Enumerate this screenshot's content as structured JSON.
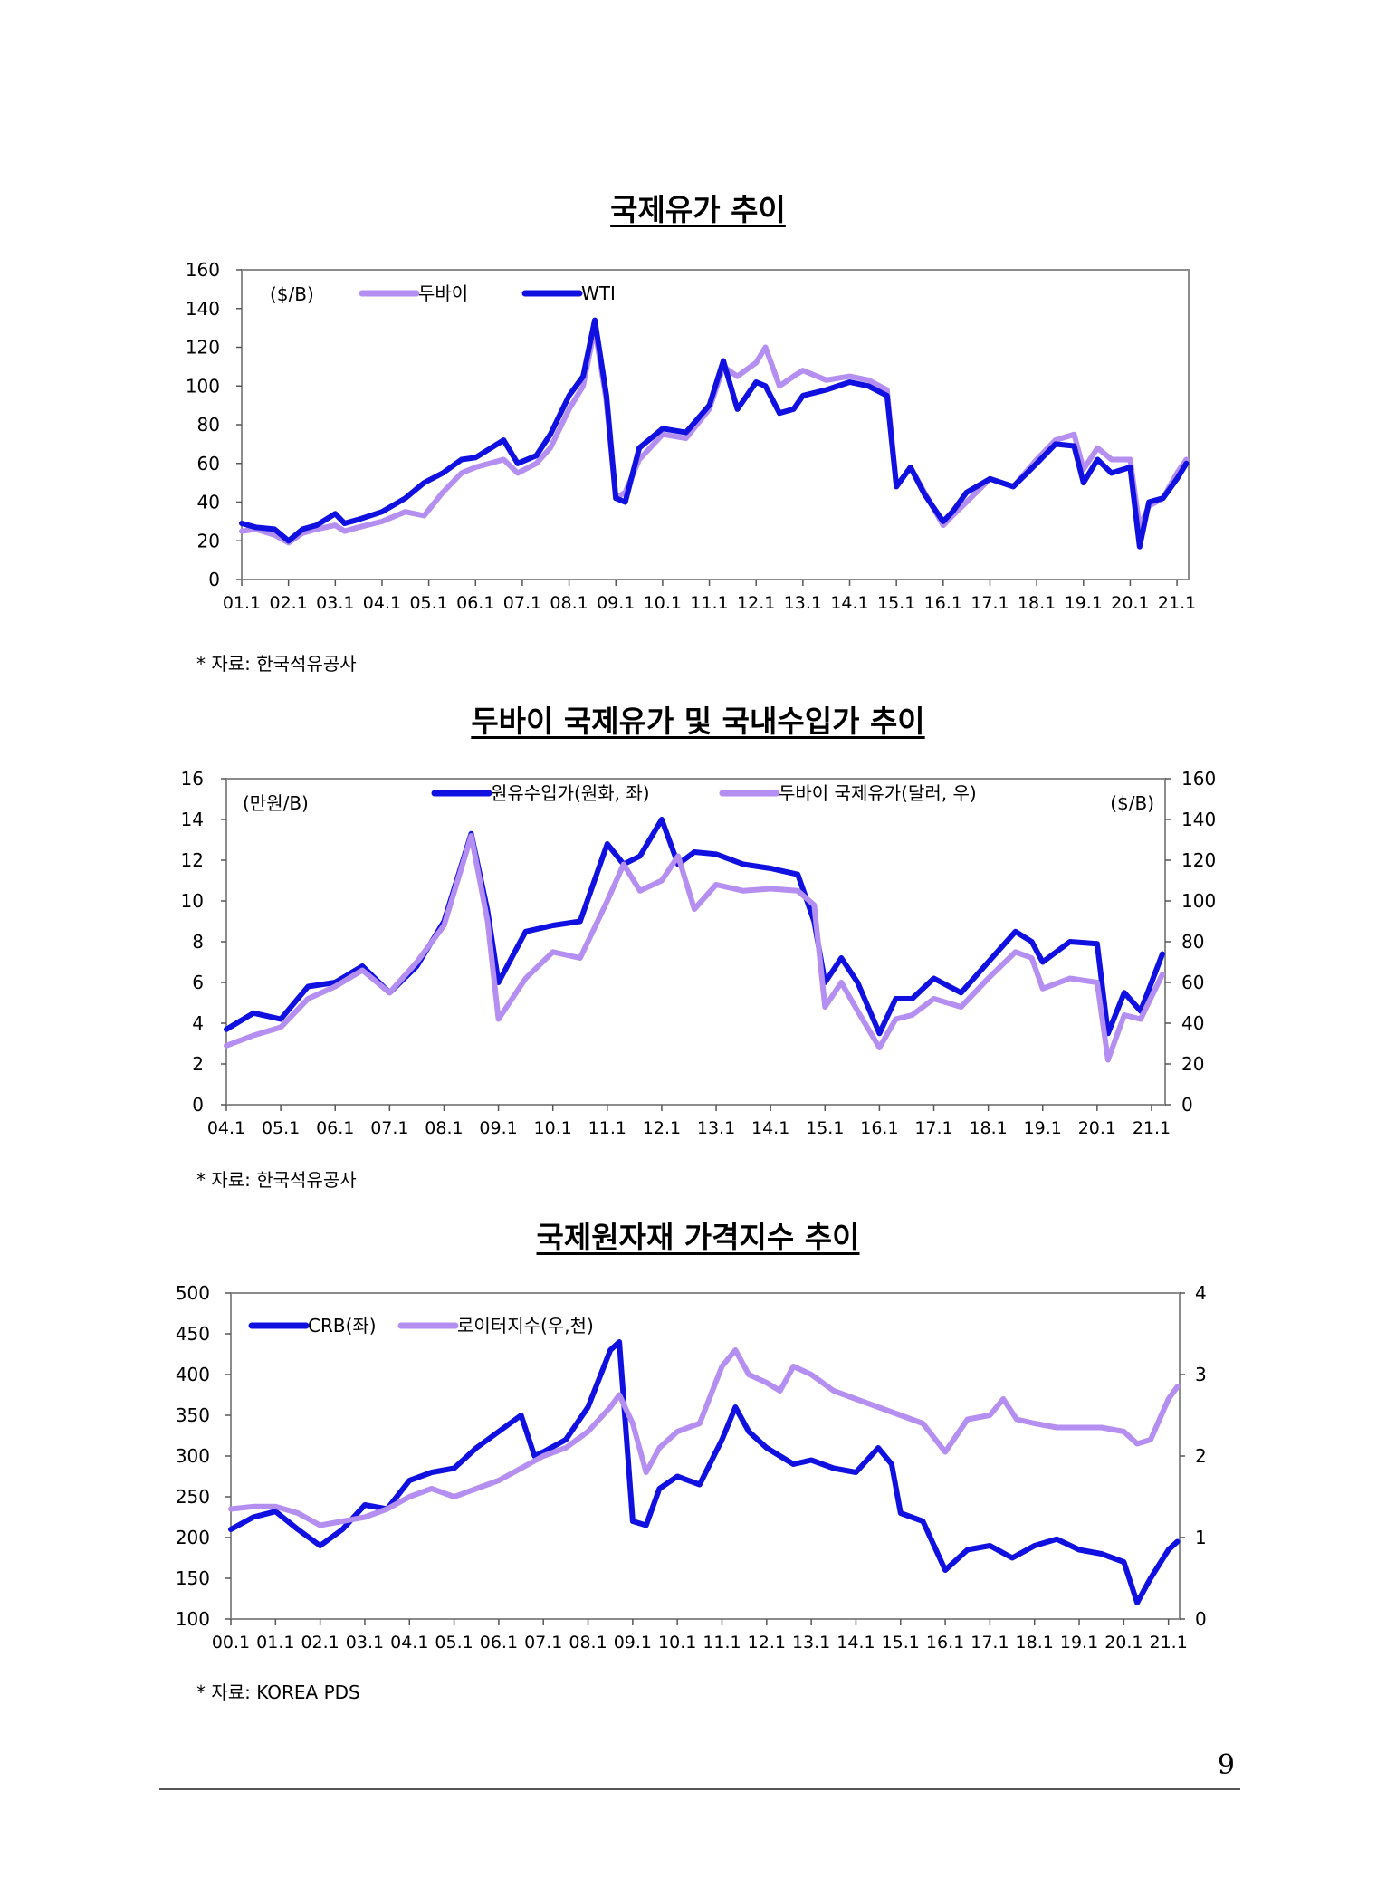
{
  "page_number": "9",
  "chart_data": [
    {
      "type": "line",
      "title": "국제유가 추이",
      "unit_label": "($/B)",
      "source": "* 자료: 한국석유공사",
      "x_ticks": [
        "01.1",
        "02.1",
        "03.1",
        "04.1",
        "05.1",
        "06.1",
        "07.1",
        "08.1",
        "09.1",
        "10.1",
        "11.1",
        "12.1",
        "13.1",
        "14.1",
        "15.1",
        "16.1",
        "17.1",
        "18.1",
        "19.1",
        "20.1",
        "21.1"
      ],
      "x_range": [
        2001.0,
        2021.25
      ],
      "ylim": [
        0,
        160
      ],
      "y_ticks": [
        0,
        20,
        40,
        60,
        80,
        100,
        120,
        140,
        160
      ],
      "legend_placement": "top-left",
      "series": [
        {
          "name": "두바이",
          "color": "#b48ef0",
          "x": [
            2001.0,
            2001.3,
            2001.7,
            2002.0,
            2002.3,
            2002.6,
            2003.0,
            2003.2,
            2003.5,
            2004.0,
            2004.5,
            2004.9,
            2005.3,
            2005.7,
            2006.0,
            2006.6,
            2006.9,
            2007.3,
            2007.6,
            2008.0,
            2008.3,
            2008.55,
            2008.8,
            2009.0,
            2009.2,
            2009.5,
            2010.0,
            2010.5,
            2011.0,
            2011.3,
            2011.6,
            2012.0,
            2012.2,
            2012.5,
            2012.8,
            2013.0,
            2013.5,
            2014.0,
            2014.4,
            2014.8,
            2015.0,
            2015.3,
            2015.6,
            2016.0,
            2016.2,
            2016.5,
            2017.0,
            2017.5,
            2018.0,
            2018.4,
            2018.8,
            2019.0,
            2019.3,
            2019.6,
            2020.0,
            2020.2,
            2020.4,
            2020.7,
            2021.0,
            2021.2
          ],
          "y": [
            25,
            26,
            23,
            19,
            24,
            26,
            28,
            25,
            27,
            30,
            35,
            33,
            45,
            55,
            58,
            62,
            55,
            60,
            68,
            88,
            100,
            130,
            92,
            42,
            45,
            62,
            75,
            73,
            88,
            110,
            105,
            112,
            120,
            100,
            105,
            108,
            103,
            105,
            103,
            98,
            48,
            58,
            45,
            28,
            33,
            40,
            52,
            48,
            62,
            72,
            75,
            57,
            68,
            62,
            62,
            27,
            38,
            42,
            55,
            62
          ]
        },
        {
          "name": "WTI",
          "color": "#1010e0",
          "x": [
            2001.0,
            2001.3,
            2001.7,
            2002.0,
            2002.3,
            2002.6,
            2003.0,
            2003.2,
            2003.5,
            2004.0,
            2004.5,
            2004.9,
            2005.3,
            2005.7,
            2006.0,
            2006.6,
            2006.9,
            2007.3,
            2007.6,
            2008.0,
            2008.3,
            2008.55,
            2008.8,
            2009.0,
            2009.2,
            2009.5,
            2010.0,
            2010.5,
            2011.0,
            2011.3,
            2011.6,
            2012.0,
            2012.2,
            2012.5,
            2012.8,
            2013.0,
            2013.5,
            2014.0,
            2014.4,
            2014.8,
            2015.0,
            2015.3,
            2015.6,
            2016.0,
            2016.2,
            2016.5,
            2017.0,
            2017.5,
            2018.0,
            2018.4,
            2018.8,
            2019.0,
            2019.3,
            2019.6,
            2020.0,
            2020.2,
            2020.4,
            2020.7,
            2021.0,
            2021.2
          ],
          "y": [
            29,
            27,
            26,
            20,
            26,
            28,
            34,
            29,
            31,
            35,
            42,
            50,
            55,
            62,
            63,
            72,
            60,
            64,
            75,
            95,
            105,
            134,
            95,
            42,
            40,
            68,
            78,
            76,
            90,
            113,
            88,
            102,
            100,
            86,
            88,
            95,
            98,
            102,
            100,
            95,
            48,
            58,
            44,
            30,
            35,
            45,
            52,
            48,
            60,
            70,
            69,
            50,
            62,
            55,
            58,
            17,
            40,
            42,
            52,
            60
          ]
        }
      ]
    },
    {
      "type": "line",
      "title": "두바이 국제유가 및 국내수입가 추이",
      "left_unit_label": "(만원/B)",
      "right_unit_label": "($/B)",
      "source": "* 자료: 한국석유공사",
      "x_ticks": [
        "04.1",
        "05.1",
        "06.1",
        "07.1",
        "08.1",
        "09.1",
        "10.1",
        "11.1",
        "12.1",
        "13.1",
        "14.1",
        "15.1",
        "16.1",
        "17.1",
        "18.1",
        "19.1",
        "20.1",
        "21.1"
      ],
      "x_range": [
        2004.0,
        2021.25
      ],
      "ylim_left": [
        0,
        16
      ],
      "ylim_right": [
        0,
        160
      ],
      "y_ticks_left": [
        0,
        2,
        4,
        6,
        8,
        10,
        12,
        14,
        16
      ],
      "y_ticks_right": [
        0,
        20,
        40,
        60,
        80,
        100,
        120,
        140,
        160
      ],
      "legend_placement": "top-center",
      "series": [
        {
          "name": "원유수입가(원화, 좌)",
          "color": "#1010e0",
          "axis": "left",
          "x": [
            2004.0,
            2004.5,
            2005.0,
            2005.5,
            2006.0,
            2006.5,
            2007.0,
            2007.5,
            2008.0,
            2008.5,
            2008.8,
            2009.0,
            2009.5,
            2010.0,
            2010.5,
            2011.0,
            2011.3,
            2011.6,
            2012.0,
            2012.3,
            2012.6,
            2013.0,
            2013.5,
            2014.0,
            2014.5,
            2014.8,
            2015.0,
            2015.3,
            2015.6,
            2016.0,
            2016.3,
            2016.6,
            2017.0,
            2017.5,
            2018.0,
            2018.5,
            2018.8,
            2019.0,
            2019.5,
            2020.0,
            2020.2,
            2020.5,
            2020.8,
            2021.2
          ],
          "y": [
            3.7,
            4.5,
            4.2,
            5.8,
            6.0,
            6.8,
            5.5,
            6.8,
            9.0,
            13.3,
            9.5,
            6.0,
            8.5,
            8.8,
            9.0,
            12.8,
            11.8,
            12.2,
            14.0,
            11.8,
            12.4,
            12.3,
            11.8,
            11.6,
            11.3,
            9.0,
            6.0,
            7.2,
            6.0,
            3.5,
            5.2,
            5.2,
            6.2,
            5.5,
            7.0,
            8.5,
            8.0,
            7.0,
            8.0,
            7.9,
            3.5,
            5.5,
            4.6,
            7.4
          ]
        },
        {
          "name": "두바이 국제유가(달러, 우)",
          "color": "#b48ef0",
          "axis": "right",
          "x": [
            2004.0,
            2004.5,
            2005.0,
            2005.5,
            2006.0,
            2006.5,
            2007.0,
            2007.5,
            2008.0,
            2008.5,
            2008.8,
            2009.0,
            2009.5,
            2010.0,
            2010.5,
            2011.0,
            2011.3,
            2011.6,
            2012.0,
            2012.3,
            2012.6,
            2013.0,
            2013.5,
            2014.0,
            2014.5,
            2014.8,
            2015.0,
            2015.3,
            2015.6,
            2016.0,
            2016.3,
            2016.6,
            2017.0,
            2017.5,
            2018.0,
            2018.5,
            2018.8,
            2019.0,
            2019.5,
            2020.0,
            2020.2,
            2020.5,
            2020.8,
            2021.2
          ],
          "y": [
            29,
            34,
            38,
            52,
            58,
            66,
            55,
            70,
            88,
            132,
            90,
            42,
            62,
            75,
            72,
            100,
            118,
            105,
            110,
            122,
            96,
            108,
            105,
            106,
            105,
            98,
            48,
            60,
            46,
            28,
            42,
            44,
            52,
            48,
            62,
            75,
            72,
            57,
            62,
            60,
            22,
            44,
            42,
            64
          ]
        }
      ]
    },
    {
      "type": "line",
      "title": "국제원자재 가격지수 추이",
      "source": "* 자료: KOREA PDS",
      "x_ticks": [
        "00.1",
        "01.1",
        "02.1",
        "03.1",
        "04.1",
        "05.1",
        "06.1",
        "07.1",
        "08.1",
        "09.1",
        "10.1",
        "11.1",
        "12.1",
        "13.1",
        "14.1",
        "15.1",
        "16.1",
        "17.1",
        "18.1",
        "19.1",
        "20.1",
        "21.1"
      ],
      "x_range": [
        2000.0,
        2021.25
      ],
      "ylim_left": [
        100,
        500
      ],
      "ylim_right": [
        0,
        4
      ],
      "y_ticks_left": [
        100,
        150,
        200,
        250,
        300,
        350,
        400,
        450,
        500
      ],
      "y_ticks_right": [
        0,
        1,
        2,
        3,
        4
      ],
      "legend_placement": "top-left",
      "series": [
        {
          "name": "CRB(좌)",
          "color": "#1010e0",
          "axis": "left",
          "x": [
            2000.0,
            2000.5,
            2001.0,
            2001.5,
            2002.0,
            2002.5,
            2003.0,
            2003.5,
            2004.0,
            2004.5,
            2005.0,
            2005.5,
            2006.0,
            2006.5,
            2006.8,
            2007.0,
            2007.5,
            2008.0,
            2008.5,
            2008.7,
            2009.0,
            2009.3,
            2009.6,
            2010.0,
            2010.5,
            2011.0,
            2011.3,
            2011.6,
            2012.0,
            2012.3,
            2012.6,
            2013.0,
            2013.5,
            2014.0,
            2014.5,
            2014.8,
            2015.0,
            2015.5,
            2016.0,
            2016.5,
            2017.0,
            2017.5,
            2018.0,
            2018.5,
            2019.0,
            2019.5,
            2020.0,
            2020.3,
            2020.6,
            2021.0,
            2021.2
          ],
          "y": [
            210,
            225,
            232,
            210,
            190,
            210,
            240,
            235,
            270,
            280,
            285,
            310,
            330,
            350,
            300,
            305,
            320,
            360,
            430,
            440,
            220,
            215,
            260,
            275,
            265,
            320,
            360,
            330,
            310,
            300,
            290,
            295,
            285,
            280,
            310,
            290,
            230,
            220,
            160,
            185,
            190,
            175,
            190,
            198,
            185,
            180,
            170,
            120,
            150,
            185,
            195
          ]
        },
        {
          "name": "로이터지수(우,천)",
          "color": "#b48ef0",
          "axis": "right",
          "x": [
            2000.0,
            2000.5,
            2001.0,
            2001.5,
            2002.0,
            2002.5,
            2003.0,
            2003.5,
            2004.0,
            2004.5,
            2005.0,
            2005.5,
            2006.0,
            2006.5,
            2007.0,
            2007.5,
            2008.0,
            2008.5,
            2008.7,
            2009.0,
            2009.3,
            2009.6,
            2010.0,
            2010.5,
            2011.0,
            2011.3,
            2011.6,
            2012.0,
            2012.3,
            2012.6,
            2013.0,
            2013.5,
            2014.0,
            2014.5,
            2015.0,
            2015.5,
            2016.0,
            2016.5,
            2017.0,
            2017.3,
            2017.6,
            2018.0,
            2018.5,
            2019.0,
            2019.5,
            2020.0,
            2020.3,
            2020.6,
            2021.0,
            2021.2
          ],
          "y": [
            1.35,
            1.38,
            1.38,
            1.3,
            1.15,
            1.2,
            1.25,
            1.35,
            1.5,
            1.6,
            1.5,
            1.6,
            1.7,
            1.85,
            2.0,
            2.1,
            2.3,
            2.6,
            2.75,
            2.4,
            1.8,
            2.1,
            2.3,
            2.4,
            3.1,
            3.3,
            3.0,
            2.9,
            2.8,
            3.1,
            3.0,
            2.8,
            2.7,
            2.6,
            2.5,
            2.4,
            2.05,
            2.45,
            2.5,
            2.7,
            2.45,
            2.4,
            2.35,
            2.35,
            2.35,
            2.3,
            2.15,
            2.2,
            2.7,
            2.85
          ]
        }
      ]
    }
  ]
}
